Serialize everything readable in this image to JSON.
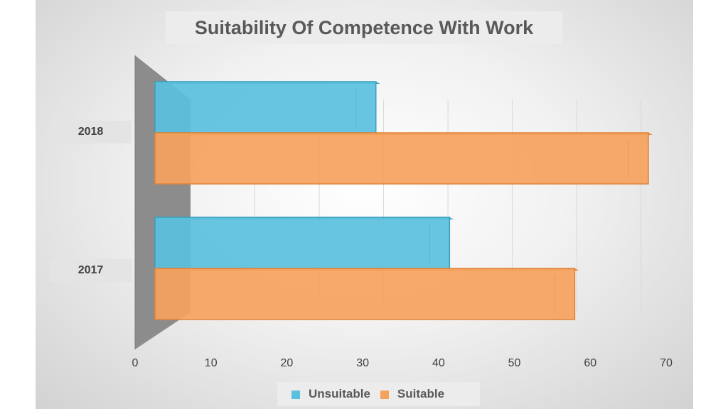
{
  "chart_data": {
    "type": "bar",
    "orientation": "horizontal",
    "title": "Suitability Of Competence With Work",
    "categories": [
      "2018",
      "2017"
    ],
    "series": [
      {
        "name": "Unsuitable",
        "color": "#5bc0de",
        "values": [
          30,
          40
        ]
      },
      {
        "name": "Suitable",
        "color": "#f5a25d",
        "values": [
          67,
          57
        ]
      }
    ],
    "xlim": [
      0,
      70
    ],
    "xticks": [
      "0",
      "10",
      "20",
      "30",
      "40",
      "50",
      "60",
      "70"
    ],
    "grid": true,
    "legend": "bottom"
  }
}
